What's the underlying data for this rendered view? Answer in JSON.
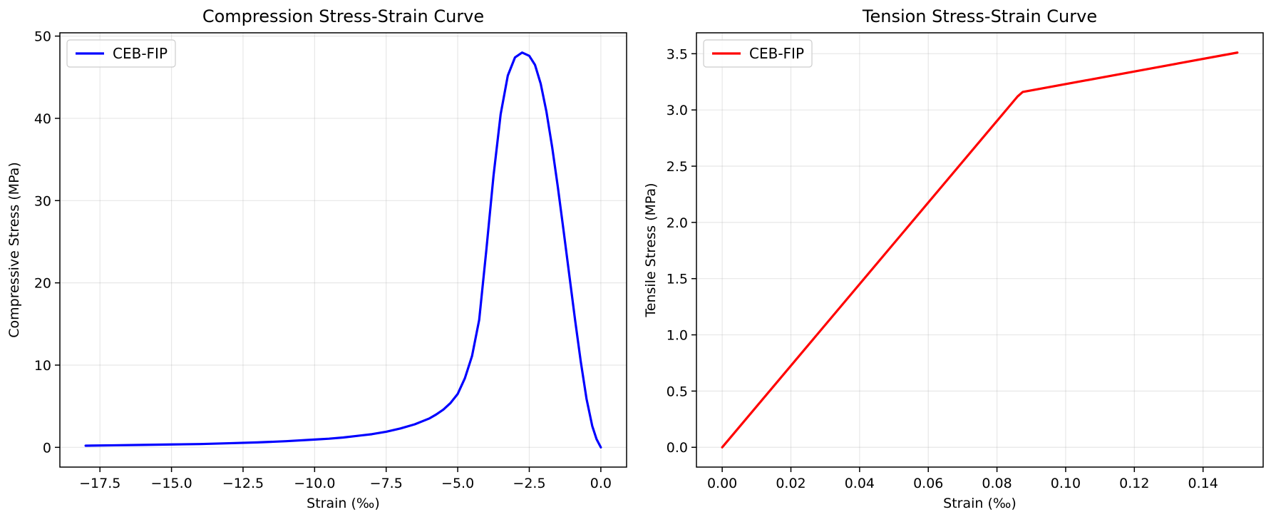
{
  "chart_data": [
    {
      "type": "line",
      "title": "Compression Stress-Strain Curve",
      "xlabel": "Strain (‰)",
      "ylabel": "Compressive Stress (MPa)",
      "xlim": [
        -18.9,
        0.9
      ],
      "ylim": [
        -2.4,
        50.4
      ],
      "xticks": [
        -17.5,
        -15.0,
        -12.5,
        -10.0,
        -7.5,
        -5.0,
        -2.5,
        0.0
      ],
      "xtick_labels": [
        "−17.5",
        "−15.0",
        "−12.5",
        "−10.0",
        "−7.5",
        "−5.0",
        "−2.5",
        "0.0"
      ],
      "yticks": [
        0,
        10,
        20,
        30,
        40,
        50
      ],
      "ytick_labels": [
        "0",
        "10",
        "20",
        "30",
        "40",
        "50"
      ],
      "grid": true,
      "legend_position": "upper-left",
      "series": [
        {
          "name": "CEB-FIP",
          "color": "#0000ff",
          "x": [
            -18.0,
            -17.0,
            -16.0,
            -15.0,
            -14.0,
            -13.0,
            -12.0,
            -11.0,
            -10.0,
            -9.5,
            -9.0,
            -8.5,
            -8.0,
            -7.5,
            -7.0,
            -6.5,
            -6.0,
            -5.75,
            -5.5,
            -5.25,
            -5.0,
            -4.75,
            -4.5,
            -4.25,
            -4.0,
            -3.75,
            -3.5,
            -3.25,
            -3.0,
            -2.75,
            -2.5,
            -2.3,
            -2.1,
            -1.9,
            -1.7,
            -1.5,
            -1.3,
            -1.1,
            -0.9,
            -0.7,
            -0.5,
            -0.3,
            -0.15,
            0.0
          ],
          "y": [
            0.2,
            0.25,
            0.3,
            0.35,
            0.4,
            0.5,
            0.6,
            0.75,
            0.95,
            1.05,
            1.2,
            1.4,
            1.6,
            1.9,
            2.3,
            2.8,
            3.5,
            4.0,
            4.6,
            5.4,
            6.5,
            8.4,
            11.1,
            15.5,
            24.0,
            33.0,
            40.5,
            45.2,
            47.4,
            48.0,
            47.6,
            46.5,
            44.2,
            40.8,
            36.5,
            31.6,
            26.3,
            20.9,
            15.5,
            10.4,
            5.9,
            2.6,
            1.0,
            0.0
          ]
        }
      ]
    },
    {
      "type": "line",
      "title": "Tension Stress-Strain Curve",
      "xlabel": "Strain (‰)",
      "ylabel": "Tensile Stress (MPa)",
      "xlim": [
        -0.0075,
        0.1575
      ],
      "ylim": [
        -0.176,
        3.686
      ],
      "xticks": [
        0.0,
        0.02,
        0.04,
        0.06,
        0.08,
        0.1,
        0.12,
        0.14
      ],
      "xtick_labels": [
        "0.00",
        "0.02",
        "0.04",
        "0.06",
        "0.08",
        "0.10",
        "0.12",
        "0.14"
      ],
      "yticks": [
        0.0,
        0.5,
        1.0,
        1.5,
        2.0,
        2.5,
        3.0,
        3.5
      ],
      "ytick_labels": [
        "0.0",
        "0.5",
        "1.0",
        "1.5",
        "2.0",
        "2.5",
        "3.0",
        "3.5"
      ],
      "grid": true,
      "legend_position": "upper-left",
      "series": [
        {
          "name": "CEB-FIP",
          "color": "#ff0000",
          "x": [
            0.0,
            0.086,
            0.0875,
            0.15
          ],
          "y": [
            0.0,
            3.12,
            3.16,
            3.51
          ]
        }
      ]
    }
  ]
}
